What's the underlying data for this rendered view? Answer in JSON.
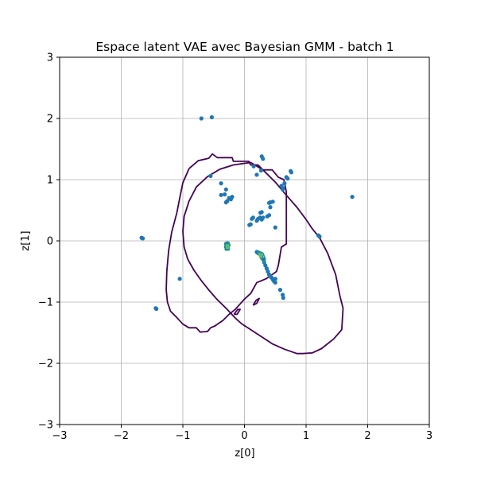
{
  "chart_data": {
    "type": "scatter",
    "title": "Espace latent VAE avec Bayesian GMM - batch 1",
    "xlabel": "z[0]",
    "ylabel": "z[1]",
    "xlim": [
      -3,
      3
    ],
    "ylim": [
      -3,
      3
    ],
    "xticks": [
      -3,
      -2,
      -1,
      0,
      1,
      2,
      3
    ],
    "yticks": [
      -3,
      -2,
      -1,
      0,
      1,
      2,
      3
    ],
    "xtick_labels": [
      "−3",
      "−2",
      "−1",
      "0",
      "1",
      "2",
      "3"
    ],
    "ytick_labels": [
      "−3",
      "−2",
      "−1",
      "0",
      "1",
      "2",
      "3"
    ],
    "grid": true,
    "point_color": "#1f77b4",
    "contour_color": "#440154",
    "inner_level_color": "#21918c",
    "peak_color": "#5ec962",
    "points": [
      [
        -0.7,
        2.0
      ],
      [
        -0.53,
        2.02
      ],
      [
        -0.55,
        1.06
      ],
      [
        -0.38,
        0.94
      ],
      [
        -0.38,
        0.75
      ],
      [
        -0.32,
        0.76
      ],
      [
        -0.3,
        0.84
      ],
      [
        -0.22,
        0.68
      ],
      [
        -0.2,
        0.72
      ],
      [
        -0.25,
        0.7
      ],
      [
        -0.28,
        0.65
      ],
      [
        -0.3,
        0.63
      ],
      [
        0.28,
        1.38
      ],
      [
        0.3,
        1.34
      ],
      [
        0.15,
        1.22
      ],
      [
        0.27,
        1.15
      ],
      [
        0.2,
        1.08
      ],
      [
        0.68,
        1.04
      ],
      [
        0.7,
        1.02
      ],
      [
        0.75,
        1.14
      ],
      [
        0.76,
        1.12
      ],
      [
        0.6,
        0.9
      ],
      [
        0.63,
        0.86
      ],
      [
        0.62,
        0.84
      ],
      [
        0.65,
        0.94
      ],
      [
        0.42,
        0.63
      ],
      [
        0.4,
        0.62
      ],
      [
        0.46,
        0.64
      ],
      [
        0.42,
        0.55
      ],
      [
        0.28,
        0.47
      ],
      [
        0.26,
        0.46
      ],
      [
        0.14,
        0.38
      ],
      [
        0.12,
        0.36
      ],
      [
        0.2,
        0.33
      ],
      [
        0.22,
        0.36
      ],
      [
        0.25,
        0.38
      ],
      [
        0.28,
        0.35
      ],
      [
        0.3,
        0.38
      ],
      [
        0.37,
        0.4
      ],
      [
        0.4,
        0.42
      ],
      [
        0.08,
        0.26
      ],
      [
        0.1,
        0.27
      ],
      [
        0.5,
        0.22
      ],
      [
        1.75,
        0.72
      ],
      [
        1.2,
        0.09
      ],
      [
        1.22,
        0.07
      ],
      [
        -1.67,
        0.05
      ],
      [
        -1.65,
        0.04
      ],
      [
        -0.3,
        -0.05
      ],
      [
        -0.3,
        -0.1
      ],
      [
        -0.28,
        -0.08
      ],
      [
        -0.27,
        -0.04
      ],
      [
        -0.29,
        -0.12
      ],
      [
        -0.26,
        -0.07
      ],
      [
        0.2,
        -0.18
      ],
      [
        0.22,
        -0.2
      ],
      [
        0.25,
        -0.22
      ],
      [
        0.27,
        -0.25
      ],
      [
        0.3,
        -0.3
      ],
      [
        0.32,
        -0.35
      ],
      [
        0.34,
        -0.4
      ],
      [
        0.36,
        -0.45
      ],
      [
        0.38,
        -0.5
      ],
      [
        0.4,
        -0.55
      ],
      [
        0.42,
        -0.58
      ],
      [
        0.44,
        -0.6
      ],
      [
        0.46,
        -0.63
      ],
      [
        0.48,
        -0.66
      ],
      [
        0.5,
        -0.68
      ],
      [
        0.5,
        -0.62
      ],
      [
        0.58,
        -0.8
      ],
      [
        0.62,
        -0.88
      ],
      [
        0.63,
        -0.93
      ],
      [
        -1.05,
        -0.62
      ],
      [
        -1.43,
        -1.11
      ],
      [
        -1.44,
        -1.1
      ]
    ],
    "contour_level_0": [
      [
        [
          -0.9,
          1.18
        ],
        [
          -0.75,
          1.31
        ],
        [
          -0.58,
          1.35
        ],
        [
          -0.52,
          1.42
        ],
        [
          -0.44,
          1.36
        ],
        [
          -0.2,
          1.36
        ],
        [
          -0.18,
          1.3
        ],
        [
          0.07,
          1.3
        ],
        [
          0.1,
          1.24
        ],
        [
          0.22,
          1.24
        ],
        [
          0.3,
          1.16
        ],
        [
          0.45,
          1.16
        ],
        [
          0.55,
          1.04
        ],
        [
          0.64,
          1.0
        ],
        [
          0.68,
          0.8
        ],
        [
          0.68,
          -0.05
        ],
        [
          0.6,
          -0.1
        ],
        [
          0.55,
          -0.4
        ],
        [
          0.52,
          -0.5
        ],
        [
          0.45,
          -0.55
        ],
        [
          0.35,
          -0.62
        ],
        [
          0.2,
          -0.68
        ],
        [
          0.1,
          -0.86
        ],
        [
          0.0,
          -0.95
        ],
        [
          -0.15,
          -1.12
        ],
        [
          -0.25,
          -1.2
        ],
        [
          -0.35,
          -1.3
        ],
        [
          -0.48,
          -1.39
        ],
        [
          -0.55,
          -1.42
        ],
        [
          -0.6,
          -1.48
        ],
        [
          -0.72,
          -1.49
        ],
        [
          -0.78,
          -1.42
        ],
        [
          -0.9,
          -1.42
        ],
        [
          -1.0,
          -1.36
        ],
        [
          -1.1,
          -1.25
        ],
        [
          -1.2,
          -1.15
        ],
        [
          -1.25,
          -1.0
        ],
        [
          -1.27,
          -0.8
        ],
        [
          -1.26,
          -0.5
        ],
        [
          -1.23,
          -0.15
        ],
        [
          -1.18,
          0.15
        ],
        [
          -1.1,
          0.45
        ],
        [
          -1.05,
          0.7
        ],
        [
          -1.0,
          0.95
        ],
        [
          -0.9,
          1.18
        ]
      ],
      [
        [
          -0.18,
          1.24
        ],
        [
          0.1,
          1.28
        ],
        [
          0.3,
          1.16
        ],
        [
          0.5,
          0.96
        ],
        [
          0.65,
          0.78
        ],
        [
          0.85,
          0.55
        ],
        [
          1.0,
          0.35
        ],
        [
          1.1,
          0.2
        ],
        [
          1.22,
          0.05
        ],
        [
          1.35,
          -0.2
        ],
        [
          1.48,
          -0.55
        ],
        [
          1.55,
          -0.9
        ],
        [
          1.6,
          -1.1
        ],
        [
          1.58,
          -1.45
        ],
        [
          1.45,
          -1.6
        ],
        [
          1.25,
          -1.76
        ],
        [
          1.1,
          -1.83
        ],
        [
          0.95,
          -1.84
        ],
        [
          0.85,
          -1.84
        ],
        [
          0.65,
          -1.77
        ],
        [
          0.45,
          -1.68
        ],
        [
          0.3,
          -1.58
        ],
        [
          0.1,
          -1.45
        ],
        [
          -0.05,
          -1.35
        ],
        [
          -0.15,
          -1.26
        ],
        [
          -0.28,
          -1.12
        ],
        [
          -0.45,
          -0.95
        ],
        [
          -0.58,
          -0.8
        ],
        [
          -0.7,
          -0.65
        ],
        [
          -0.82,
          -0.48
        ],
        [
          -0.92,
          -0.3
        ],
        [
          -0.98,
          -0.1
        ],
        [
          -1.0,
          0.15
        ],
        [
          -0.98,
          0.4
        ],
        [
          -0.9,
          0.65
        ],
        [
          -0.78,
          0.88
        ],
        [
          -0.6,
          1.05
        ],
        [
          -0.4,
          1.17
        ],
        [
          -0.18,
          1.24
        ]
      ],
      [
        [
          0.14,
          -1.05
        ],
        [
          0.19,
          -0.97
        ],
        [
          0.24,
          -0.94
        ],
        [
          0.2,
          -1.02
        ],
        [
          0.14,
          -1.05
        ]
      ],
      [
        [
          -0.17,
          -1.2
        ],
        [
          -0.11,
          -1.12
        ],
        [
          -0.07,
          -1.12
        ],
        [
          -0.12,
          -1.2
        ],
        [
          -0.17,
          -1.2
        ]
      ]
    ],
    "contour_level_1": [
      [
        [
          -0.31,
          -0.02
        ],
        [
          -0.25,
          -0.03
        ],
        [
          -0.25,
          -0.15
        ],
        [
          -0.31,
          -0.15
        ],
        [
          -0.31,
          -0.02
        ]
      ],
      [
        [
          0.21,
          -0.16
        ],
        [
          0.3,
          -0.2
        ],
        [
          0.34,
          -0.3
        ],
        [
          0.32,
          -0.36
        ],
        [
          0.26,
          -0.28
        ],
        [
          0.21,
          -0.16
        ]
      ]
    ],
    "contour_level_2": [
      [
        [
          -0.29,
          -0.06
        ],
        [
          -0.26,
          -0.07
        ],
        [
          -0.26,
          -0.12
        ],
        [
          -0.29,
          -0.12
        ],
        [
          -0.29,
          -0.06
        ]
      ],
      [
        [
          0.23,
          -0.2
        ],
        [
          0.27,
          -0.22
        ],
        [
          0.28,
          -0.27
        ],
        [
          0.25,
          -0.26
        ],
        [
          0.23,
          -0.2
        ]
      ]
    ]
  }
}
